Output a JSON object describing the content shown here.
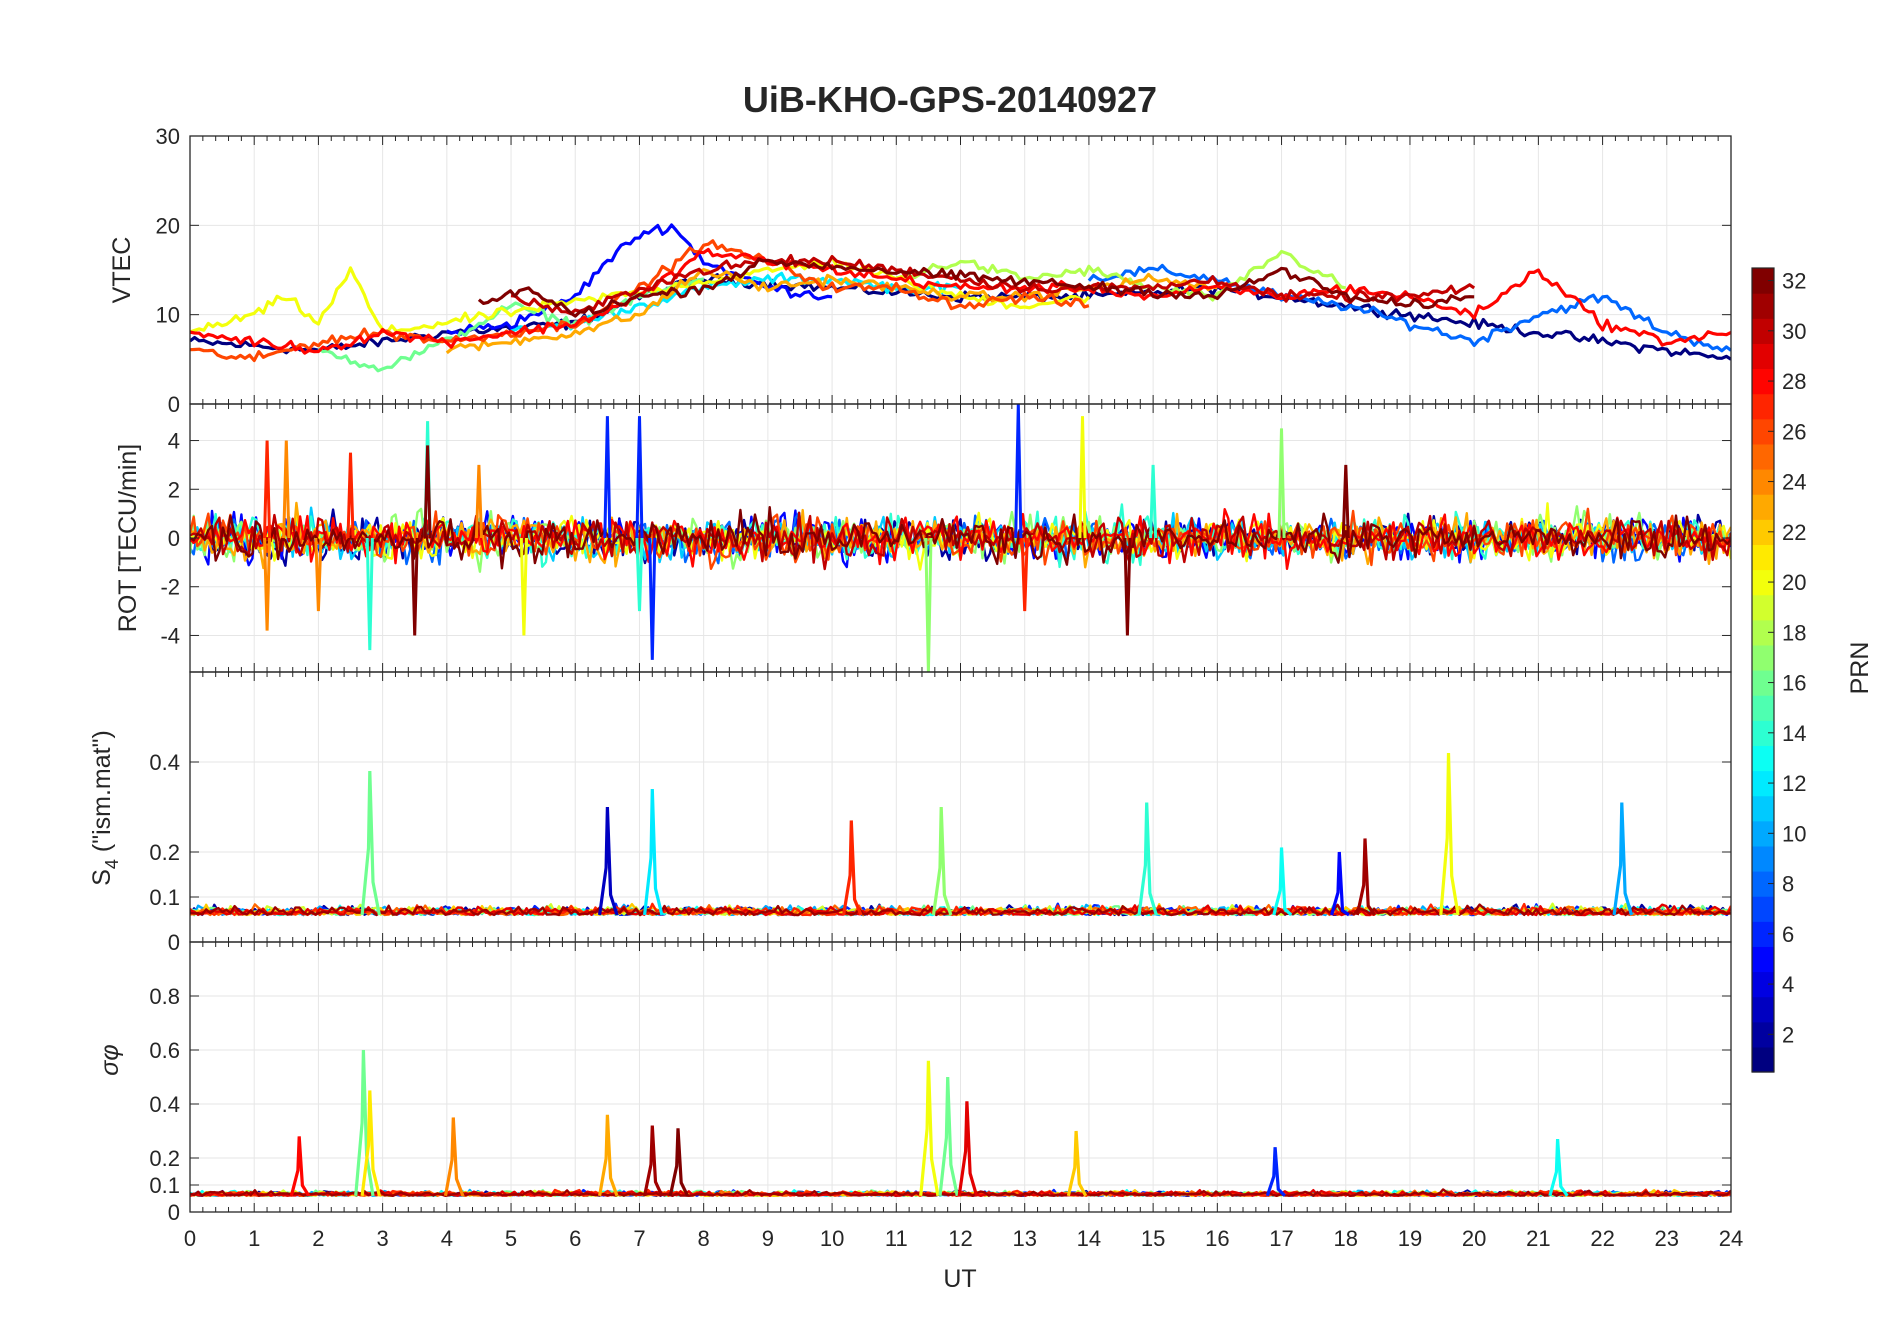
{
  "title": "UiB-KHO-GPS-20140927",
  "chart_data": {
    "type": "line",
    "shared_x": {
      "label": "UT",
      "range": [
        0,
        24
      ],
      "ticks": [
        "0",
        "1",
        "2",
        "3",
        "4",
        "5",
        "6",
        "7",
        "8",
        "9",
        "10",
        "11",
        "12",
        "13",
        "14",
        "15",
        "16",
        "17",
        "18",
        "19",
        "20",
        "21",
        "22",
        "23",
        "24"
      ]
    },
    "panels": [
      {
        "id": "vtec",
        "ylabel": "VTEC",
        "ylim": [
          0,
          30
        ],
        "yticks": [
          0,
          10,
          20,
          30
        ],
        "ytick_labels": [
          "0",
          "10",
          "20",
          "30"
        ],
        "grid": true,
        "series": [
          {
            "prn": 1,
            "x": [
              0,
              2,
              4,
              6,
              7,
              8,
              10,
              12,
              14,
              16,
              18,
              20,
              22,
              24
            ],
            "y": [
              7,
              6,
              8,
              9,
              12,
              14,
              13,
              12,
              12,
              13,
              11,
              9,
              7,
              5
            ]
          },
          {
            "prn": 5,
            "x": [
              4,
              5,
              6,
              6.5,
              7,
              7.5,
              8,
              9,
              10
            ],
            "y": [
              8,
              9,
              12,
              16,
              19,
              20,
              16,
              13,
              12
            ]
          },
          {
            "prn": 8,
            "x": [
              14,
              15,
              16,
              17,
              18,
              19,
              20,
              21,
              22,
              23,
              24
            ],
            "y": [
              14,
              15,
              14,
              12,
              11,
              9,
              7,
              10,
              12,
              8,
              6
            ]
          },
          {
            "prn": 12,
            "x": [
              5,
              6,
              7,
              8,
              9,
              10,
              11,
              12
            ],
            "y": [
              8,
              9,
              11,
              13,
              14,
              14,
              13,
              13
            ]
          },
          {
            "prn": 16,
            "x": [
              2,
              3,
              4,
              5,
              6,
              7,
              8
            ],
            "y": [
              6,
              4,
              7,
              11,
              9,
              12,
              14
            ]
          },
          {
            "prn": 18,
            "x": [
              11,
              12,
              13,
              14,
              15,
              16,
              17,
              18
            ],
            "y": [
              14,
              16,
              14,
              15,
              13,
              12,
              17,
              13
            ]
          },
          {
            "prn": 20,
            "x": [
              0,
              1,
              1.5,
              2,
              2.5,
              3,
              10,
              11,
              12,
              13,
              14
            ],
            "y": [
              8,
              10,
              12,
              9,
              15,
              8,
              16,
              14,
              12,
              11,
              12
            ]
          },
          {
            "prn": 23,
            "x": [
              4,
              5,
              6,
              7,
              8,
              9,
              10,
              11,
              12,
              13,
              14,
              15,
              16
            ],
            "y": [
              6,
              7,
              8,
              10,
              15,
              13,
              14,
              13,
              12,
              12,
              13,
              14,
              13
            ]
          },
          {
            "prn": 26,
            "x": [
              0,
              1,
              2,
              3,
              4,
              5,
              6,
              7,
              8,
              9,
              10,
              11,
              12,
              13,
              14
            ],
            "y": [
              6,
              5,
              7,
              8,
              7,
              8,
              9,
              13,
              18,
              16,
              13,
              13,
              11,
              12,
              11
            ]
          },
          {
            "prn": 28,
            "x": [
              0,
              1,
              2,
              3,
              4,
              5,
              6,
              7,
              8,
              9,
              10,
              11,
              12,
              13,
              14,
              15,
              16,
              17,
              18,
              19,
              20,
              21,
              22,
              23,
              24
            ],
            "y": [
              8,
              7,
              6,
              8,
              7,
              8,
              9,
              12,
              17,
              16,
              15,
              14,
              13,
              13,
              13,
              12,
              13,
              12,
              13,
              12,
              10,
              15,
              9,
              7,
              8
            ]
          },
          {
            "prn": 30,
            "x": [
              5,
              6,
              7,
              8,
              9,
              10,
              11,
              12,
              13,
              14,
              15,
              16,
              17,
              18,
              19,
              20
            ],
            "y": [
              12,
              10,
              13,
              15,
              16,
              16,
              15,
              14,
              13,
              13,
              13,
              14,
              12,
              12,
              12,
              13
            ]
          },
          {
            "prn": 32,
            "x": [
              4.5,
              5.2,
              6,
              7,
              8,
              9,
              16,
              17,
              18,
              19,
              20
            ],
            "y": [
              11,
              13,
              10,
              12,
              13,
              16,
              12,
              15,
              12,
              11,
              12
            ]
          }
        ]
      },
      {
        "id": "rot",
        "ylabel": "ROT [TECU/min]",
        "ylim": [
          -5.5,
          5.5
        ],
        "yticks": [
          -4,
          -2,
          0,
          2,
          4
        ],
        "ytick_labels": [
          "-4",
          "-2",
          "0",
          "2",
          "4"
        ],
        "grid": true,
        "spike_series": [
          {
            "prn": 6,
            "x": [
              6.5,
              7,
              7.2,
              12.9
            ],
            "y": [
              5,
              5,
              -5,
              5.5
            ]
          },
          {
            "prn": 14,
            "x": [
              2.8,
              3.7,
              7,
              15
            ],
            "y": [
              -4.6,
              4.8,
              -3,
              3
            ]
          },
          {
            "prn": 17,
            "x": [
              11.5,
              17
            ],
            "y": [
              -5.5,
              4.5
            ]
          },
          {
            "prn": 20,
            "x": [
              5.2,
              13.9
            ],
            "y": [
              -4,
              5
            ]
          },
          {
            "prn": 24,
            "x": [
              1.2,
              1.5,
              2,
              4.5
            ],
            "y": [
              -3.8,
              4,
              -3,
              3
            ]
          },
          {
            "prn": 27,
            "x": [
              1.2,
              2.5,
              13
            ],
            "y": [
              4,
              3.5,
              -3
            ]
          },
          {
            "prn": 32,
            "x": [
              3.5,
              3.7,
              14.6,
              18
            ],
            "y": [
              -4,
              3.8,
              -4,
              3
            ]
          }
        ]
      },
      {
        "id": "s4",
        "ylabel": "S4 (\"ism.mat\")",
        "ylabel_main": "S",
        "ylabel_sub": "4",
        "ylabel_rest": " (\"ism.mat\")",
        "ylim": [
          0,
          0.6
        ],
        "yticks": [
          0,
          0.1,
          0.2,
          0.4
        ],
        "ytick_labels": [
          "0",
          "0.1",
          "0.2",
          "0.4"
        ],
        "grid": true,
        "peaks": [
          {
            "prn": 16,
            "x": 2.8,
            "y": 0.38
          },
          {
            "prn": 3,
            "x": 6.5,
            "y": 0.3
          },
          {
            "prn": 12,
            "x": 7.2,
            "y": 0.34
          },
          {
            "prn": 27,
            "x": 10.3,
            "y": 0.27
          },
          {
            "prn": 17,
            "x": 11.7,
            "y": 0.3
          },
          {
            "prn": 14,
            "x": 14.9,
            "y": 0.31
          },
          {
            "prn": 13,
            "x": 17.0,
            "y": 0.21
          },
          {
            "prn": 5,
            "x": 17.9,
            "y": 0.2
          },
          {
            "prn": 31,
            "x": 18.3,
            "y": 0.23
          },
          {
            "prn": 20,
            "x": 19.6,
            "y": 0.42
          },
          {
            "prn": 10,
            "x": 22.3,
            "y": 0.31
          }
        ]
      },
      {
        "id": "sigma_phi",
        "ylabel": "σφ",
        "ylim": [
          0,
          1
        ],
        "yticks": [
          0,
          0.1,
          0.2,
          0.4,
          0.6,
          0.8
        ],
        "ytick_labels": [
          "0",
          "0.1",
          "0.2",
          "0.4",
          "0.6",
          "0.8"
        ],
        "grid": true,
        "peaks": [
          {
            "prn": 28,
            "x": 1.7,
            "y": 0.28
          },
          {
            "prn": 16,
            "x": 2.7,
            "y": 0.6
          },
          {
            "prn": 21,
            "x": 2.8,
            "y": 0.45
          },
          {
            "prn": 24,
            "x": 4.1,
            "y": 0.35
          },
          {
            "prn": 23,
            "x": 6.5,
            "y": 0.36
          },
          {
            "prn": 31,
            "x": 7.2,
            "y": 0.32
          },
          {
            "prn": 32,
            "x": 7.6,
            "y": 0.31
          },
          {
            "prn": 20,
            "x": 11.5,
            "y": 0.56
          },
          {
            "prn": 16,
            "x": 11.8,
            "y": 0.5
          },
          {
            "prn": 29,
            "x": 12.1,
            "y": 0.41
          },
          {
            "prn": 22,
            "x": 13.8,
            "y": 0.3
          },
          {
            "prn": 6,
            "x": 16.9,
            "y": 0.24
          },
          {
            "prn": 13,
            "x": 21.3,
            "y": 0.27
          }
        ]
      }
    ],
    "colorbar": {
      "label": "PRN",
      "range": [
        1,
        32
      ],
      "ticks": [
        "2",
        "4",
        "6",
        "8",
        "10",
        "12",
        "14",
        "16",
        "18",
        "20",
        "22",
        "24",
        "26",
        "28",
        "30",
        "32"
      ],
      "colormap": "jet"
    }
  }
}
